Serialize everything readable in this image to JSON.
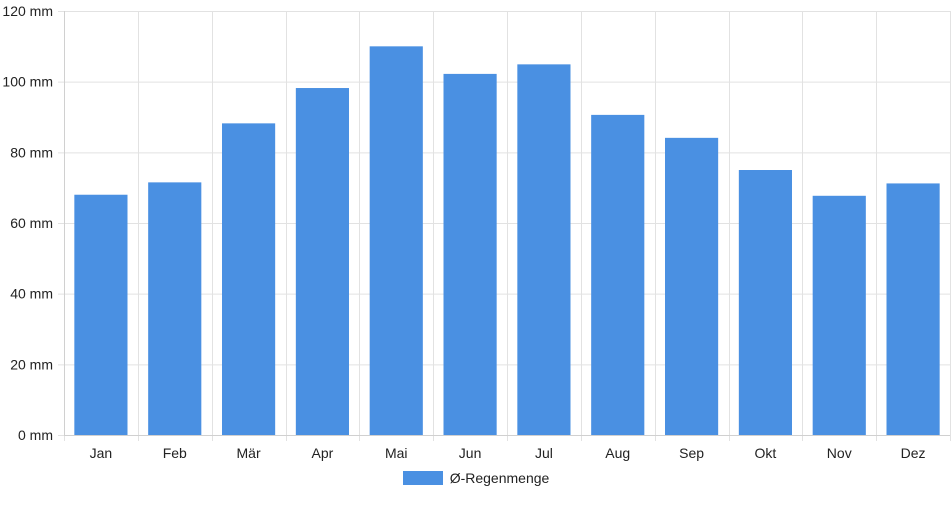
{
  "chart_data": {
    "type": "bar",
    "categories": [
      "Jan",
      "Feb",
      "Mär",
      "Apr",
      "Mai",
      "Jun",
      "Jul",
      "Aug",
      "Sep",
      "Okt",
      "Nov",
      "Dez"
    ],
    "series": [
      {
        "name": "Ø-Regenmenge",
        "values": [
          68,
          71.5,
          88.2,
          98.2,
          110,
          102.2,
          104.9,
          90.6,
          84.1,
          75,
          67.7,
          71.2
        ],
        "color": "#4a90e2"
      }
    ],
    "ylim": [
      0,
      120
    ],
    "y_ticks": [
      0,
      20,
      40,
      60,
      80,
      100,
      120
    ],
    "y_unit": "mm",
    "grid": true,
    "legend_position": "bottom"
  }
}
